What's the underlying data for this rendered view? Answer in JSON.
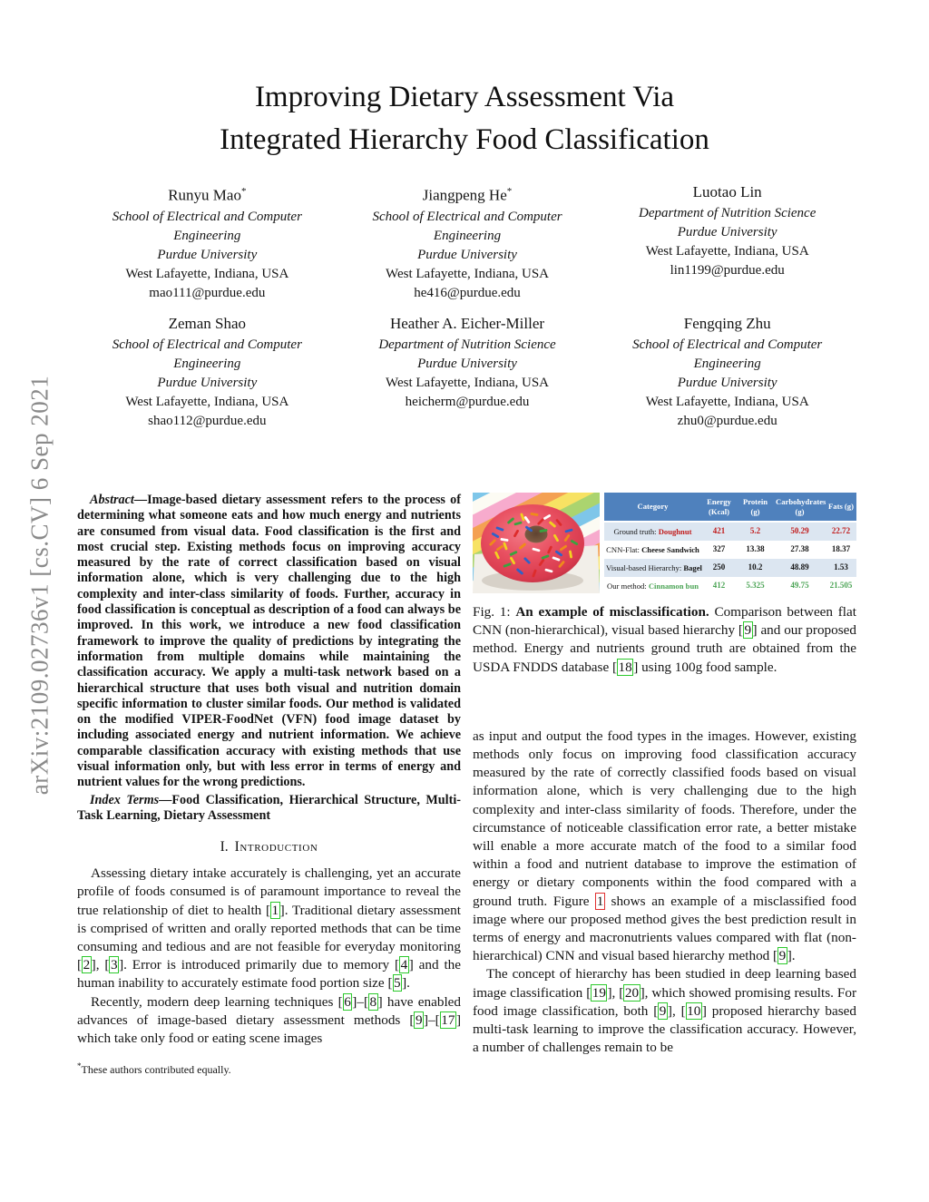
{
  "arxiv_stamp": "arXiv:2109.02736v1  [cs.CV]  6 Sep 2021",
  "title": {
    "line1": "Improving Dietary Assessment Via",
    "line2": "Integrated Hierarchy Food Classification"
  },
  "authors": [
    {
      "name": "Runyu Mao",
      "star": "*",
      "aff": [
        "School of Electrical and Computer",
        "Engineering",
        "Purdue University"
      ],
      "addr": "West Lafayette, Indiana, USA",
      "email": "mao111@purdue.edu"
    },
    {
      "name": "Jiangpeng He",
      "star": "*",
      "aff": [
        "School of Electrical and Computer",
        "Engineering",
        "Purdue University"
      ],
      "addr": "West Lafayette, Indiana, USA",
      "email": "he416@purdue.edu"
    },
    {
      "name": "Luotao Lin",
      "star": "",
      "aff": [
        "Department of Nutrition Science",
        "Purdue University"
      ],
      "addr": "West Lafayette, Indiana, USA",
      "email": "lin1199@purdue.edu"
    },
    {
      "name": "Zeman Shao",
      "star": "",
      "aff": [
        "School of Electrical and Computer",
        "Engineering",
        "Purdue University"
      ],
      "addr": "West Lafayette, Indiana, USA",
      "email": "shao112@purdue.edu"
    },
    {
      "name": "Heather A. Eicher-Miller",
      "star": "",
      "aff": [
        "Department of Nutrition Science",
        "Purdue University"
      ],
      "addr": "West Lafayette, Indiana, USA",
      "email": "heicherm@purdue.edu"
    },
    {
      "name": "Fengqing Zhu",
      "star": "",
      "aff": [
        "School of Electrical and Computer",
        "Engineering",
        "Purdue University"
      ],
      "addr": "West Lafayette, Indiana, USA",
      "email": "zhu0@purdue.edu"
    }
  ],
  "abstract": {
    "lead": "Abstract",
    "text": "—Image-based dietary assessment refers to the process of determining what someone eats and how much energy and nutrients are consumed from visual data. Food classification is the first and most crucial step. Existing methods focus on improving accuracy measured by the rate of correct classification based on visual information alone, which is very challenging due to the high complexity and inter-class similarity of foods. Further, accuracy in food classification is conceptual as description of a food can always be improved. In this work, we introduce a new food classification framework to improve the quality of predictions by integrating the information from multiple domains while maintaining the classification accuracy. We apply a multi-task network based on a hierarchical structure that uses both visual and nutrition domain specific information to cluster similar foods. Our method is validated on the modified VIPER-FoodNet (VFN) food image dataset by including associated energy and nutrient information. We achieve comparable classification accuracy with existing methods that use visual information only, but with less error in terms of energy and nutrient values for the wrong predictions."
  },
  "index_terms": {
    "lead": "Index Terms",
    "text": "—Food Classification, Hierarchical Structure, Multi-Task Learning, Dietary Assessment"
  },
  "sections": {
    "intro_num": "I.",
    "intro_title": "Introduction"
  },
  "left": {
    "p1": {
      "s0": "Assessing dietary intake accurately is challenging, yet an accurate profile of foods consumed is of paramount importance to reveal the true relationship of diet to health [",
      "c1": "1",
      "s2": "]. Traditional dietary assessment is comprised of written and orally reported methods that can be time consuming and tedious and are not feasible for everyday monitoring [",
      "c3": "2",
      "s4": "], [",
      "c5": "3",
      "s6": "]. Error is introduced primarily due to memory [",
      "c7": "4",
      "s8": "] and the human inability to accurately estimate food portion size [",
      "c9": "5",
      "s10": "]."
    },
    "p2": {
      "s0": "Recently, modern deep learning techniques [",
      "c1": "6",
      "s2": "]–[",
      "c3": "8",
      "s4": "] have enabled advances of image-based dietary assessment methods [",
      "c5": "9",
      "s6": "]–[",
      "c7": "17",
      "s8": "] which take only food or eating scene images"
    },
    "footnote_star": "*",
    "footnote_text": "These authors contributed equally."
  },
  "figure": {
    "image_description": "Doughnut with red-pink frosting and rainbow sprinkles on a white plate over rainbow striped background",
    "table": {
      "headers": [
        "Category",
        "Energy (Kcal)",
        "Protein (g)",
        "Carbohydrates (g)",
        "Fats (g)"
      ],
      "rows": [
        {
          "prefix": "Ground truth: ",
          "name": "Doughnut",
          "values": [
            "421",
            "5.2",
            "50.29",
            "22.72"
          ],
          "highlight": "red"
        },
        {
          "prefix": "CNN-Flat: ",
          "name": "Cheese Sandwich",
          "values": [
            "327",
            "13.38",
            "27.38",
            "18.37"
          ],
          "highlight": "none"
        },
        {
          "prefix": "Visual-based Hierarchy: ",
          "name": "Bagel",
          "values": [
            "250",
            "10.2",
            "48.89",
            "1.53"
          ],
          "highlight": "none"
        },
        {
          "prefix": "Our method: ",
          "name": "Cinnamon bun",
          "values": [
            "412",
            "5.325",
            "49.75",
            "21.505"
          ],
          "highlight": "green"
        }
      ]
    },
    "caption": {
      "s0": "Fig. 1: ",
      "bold": "An example of misclassification.",
      "s1": " Comparison between flat CNN (non-hierarchical), visual based hierarchy [",
      "c1": "9",
      "s2": "] and our proposed method. Energy and nutrients ground truth are obtained from the USDA FNDDS database [",
      "c2": "18",
      "s3": "] using 100g food sample."
    }
  },
  "right": {
    "p1": {
      "s0": "as input and output the food types in the images. However, existing methods only focus on improving food classification accuracy measured by the rate of correctly classified foods based on visual information alone, which is very challenging due to the high complexity and inter-class similarity of foods. Therefore, under the circumstance of noticeable classification error rate, a better mistake will enable a more accurate match of the food to a similar food within a food and nutrient database to improve the estimation of energy or dietary components within the food compared with a ground truth. Figure ",
      "f1": "1",
      "s2": " shows an example of a misclassified food image where our proposed method gives the best prediction result in terms of energy and macronutrients values compared with flat (non-hierarchical) CNN and visual based hierarchy method [",
      "c3": "9",
      "s4": "]."
    },
    "p2": {
      "s0": "The concept of hierarchy has been studied in deep learning based image classification [",
      "c1": "19",
      "s2": "], [",
      "c3": "20",
      "s4": "], which showed promising results. For food image classification, both [",
      "c5": "9",
      "s6": "], [",
      "c7": "10",
      "s8": "] proposed hierarchy based multi-task learning to improve the classification accuracy. However, a number of challenges remain to be"
    }
  },
  "colors": {
    "citation_box": "#2cc92c",
    "figure_ref_box": "#e03030",
    "table_header": "#4f81bd",
    "table_band": "#dce6f1",
    "ground_truth_text": "#c11b1b",
    "our_method_text": "#4ba455"
  }
}
